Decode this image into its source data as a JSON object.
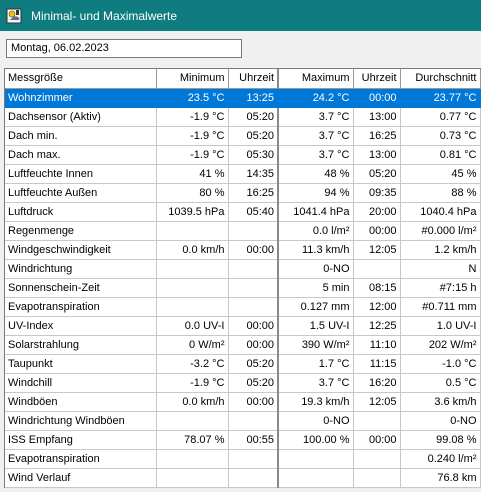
{
  "window": {
    "title": "Minimal- und Maximalwerte",
    "icon": "weather-station-icon"
  },
  "date_field": {
    "value": "Montag, 06.02.2023"
  },
  "table": {
    "headers": [
      "Messgröße",
      "Minimum",
      "Uhrzeit",
      "Maximum",
      "Uhrzeit",
      "Durchschnitt"
    ],
    "selected_row": 0,
    "selection_color": "#0078d7",
    "rows": [
      [
        "Wohnzimmer",
        "23.5 °C",
        "13:25",
        "24.2 °C",
        "00:00",
        "23.77 °C"
      ],
      [
        "Dachsensor (Aktiv)",
        "-1.9 °C",
        "05:20",
        "3.7 °C",
        "13:00",
        "0.77 °C"
      ],
      [
        "Dach min.",
        "-1.9 °C",
        "05:20",
        "3.7 °C",
        "16:25",
        "0.73 °C"
      ],
      [
        "Dach max.",
        "-1.9 °C",
        "05:30",
        "3.7 °C",
        "13:00",
        "0.81 °C"
      ],
      [
        "Luftfeuchte Innen",
        "41 %",
        "14:35",
        "48 %",
        "05:20",
        "45 %"
      ],
      [
        "Luftfeuchte Außen",
        "80 %",
        "16:25",
        "94 %",
        "09:35",
        "88 %"
      ],
      [
        "Luftdruck",
        "1039.5 hPa",
        "05:40",
        "1041.4 hPa",
        "20:00",
        "1040.4 hPa"
      ],
      [
        "Regenmenge",
        "",
        "",
        "0.0 l/m²",
        "00:00",
        "#0.000 l/m²"
      ],
      [
        "Windgeschwindigkeit",
        "0.0 km/h",
        "00:00",
        "11.3 km/h",
        "12:05",
        "1.2 km/h"
      ],
      [
        "Windrichtung",
        "",
        "",
        "0-NO",
        "",
        "N"
      ],
      [
        "Sonnenschein-Zeit",
        "",
        "",
        "5 min",
        "08:15",
        "#7:15 h"
      ],
      [
        "Evapotranspiration",
        "",
        "",
        "0.127 mm",
        "12:00",
        "#0.711 mm"
      ],
      [
        "UV-Index",
        "0.0 UV-I",
        "00:00",
        "1.5 UV-I",
        "12:25",
        "1.0 UV-I"
      ],
      [
        "Solarstrahlung",
        "0 W/m²",
        "00:00",
        "390 W/m²",
        "11:10",
        "202 W/m²"
      ],
      [
        "Taupunkt",
        "-3.2 °C",
        "05:20",
        "1.7 °C",
        "11:15",
        "-1.0 °C"
      ],
      [
        "Windchill",
        "-1.9 °C",
        "05:20",
        "3.7 °C",
        "16:20",
        "0.5 °C"
      ],
      [
        "Windböen",
        "0.0 km/h",
        "00:00",
        "19.3 km/h",
        "12:05",
        "3.6 km/h"
      ],
      [
        "Windrichtung Windböen",
        "",
        "",
        "0-NO",
        "",
        "0-NO"
      ],
      [
        "ISS Empfang",
        "78.07 %",
        "00:55",
        "100.00 %",
        "00:00",
        "99.08 %"
      ],
      [
        "Evapotranspiration",
        "",
        "",
        "",
        "",
        "0.240 l/m²"
      ],
      [
        "Wind Verlauf",
        "",
        "",
        "",
        "",
        "76.8 km"
      ]
    ]
  }
}
